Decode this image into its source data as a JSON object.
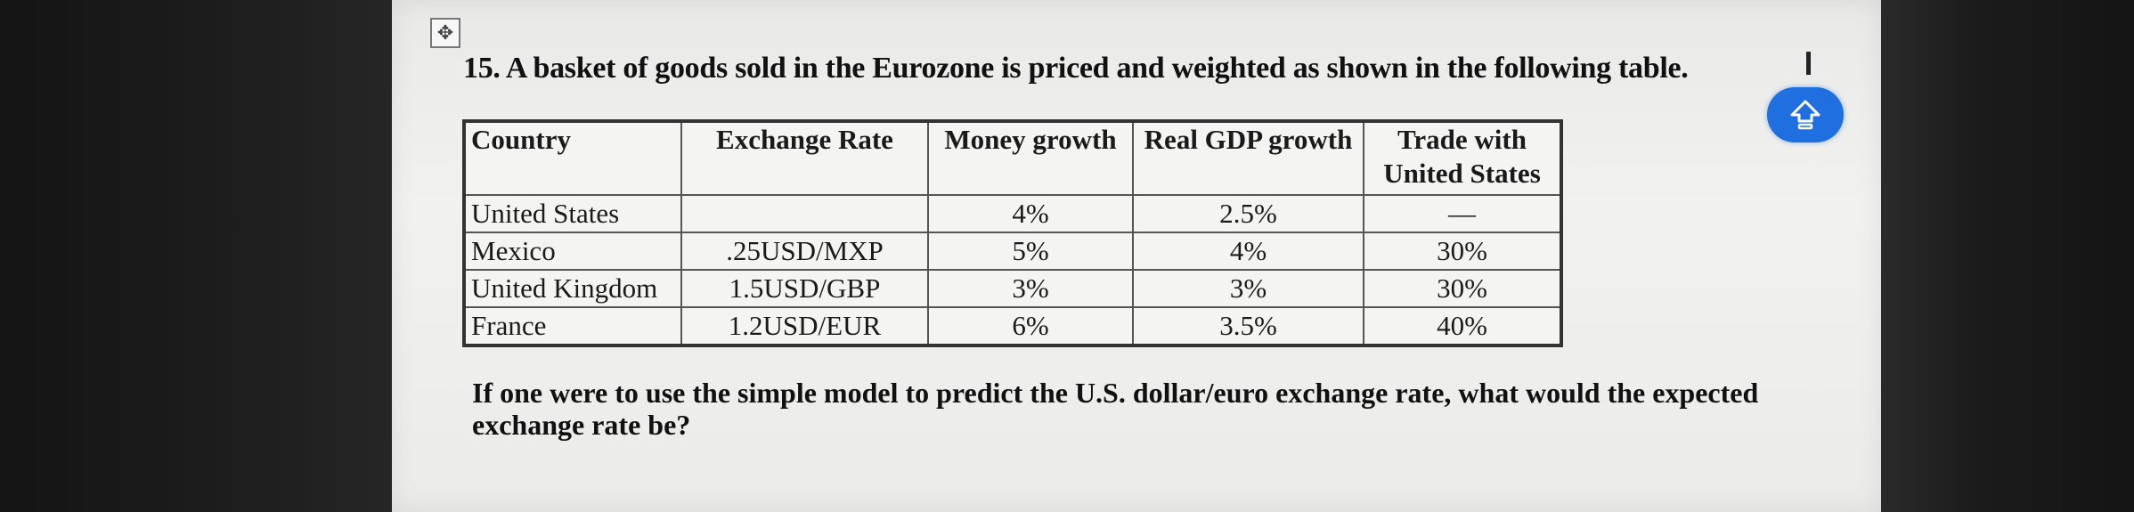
{
  "question": {
    "title": "15. A basket of goods sold in the Eurozone is priced and weighted as shown in the following table.",
    "follow_up": "If one were to use the simple model to predict the U.S. dollar/euro exchange rate, what would the expected exchange rate be?"
  },
  "table": {
    "headers": [
      "Country",
      "Exchange Rate",
      "Money growth",
      "Real GDP growth",
      "Trade with United States"
    ],
    "rows": [
      [
        "United States",
        "",
        "4%",
        "2.5%",
        "—"
      ],
      [
        "Mexico",
        ".25USD/MXP",
        "5%",
        "4%",
        "30%"
      ],
      [
        "United Kingdom",
        "1.5USD/GBP",
        "3%",
        "3%",
        "30%"
      ],
      [
        "France",
        "1.2USD/EUR",
        "6%",
        "3.5%",
        "40%"
      ]
    ]
  },
  "icons": {
    "move_handle": "move-icon",
    "up_button": "arrow-up-icon"
  },
  "colors": {
    "accent": "#1f6fe0",
    "page": "#ececea",
    "background": "#1b1b1b"
  }
}
